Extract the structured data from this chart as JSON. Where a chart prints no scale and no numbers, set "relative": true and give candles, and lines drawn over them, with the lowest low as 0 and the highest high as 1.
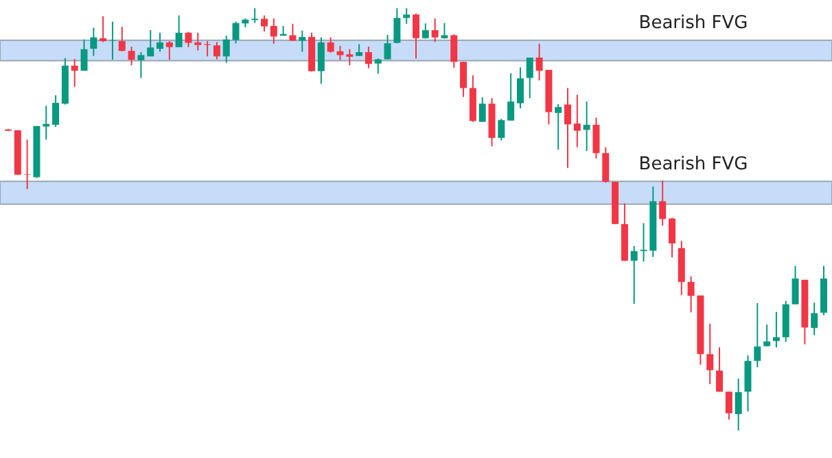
{
  "chart_data": {
    "type": "candlestick",
    "relative": true,
    "categories": [
      null,
      null,
      null,
      null,
      null,
      null,
      null,
      null,
      null,
      null,
      null,
      null,
      null,
      null,
      null,
      null,
      null,
      null,
      null,
      null,
      null,
      null,
      null,
      null,
      null,
      null,
      null,
      null,
      null,
      null,
      null,
      null,
      null,
      null,
      null,
      null,
      null,
      null,
      null,
      null,
      null,
      null,
      null,
      null,
      null,
      null,
      null,
      null,
      null,
      null,
      null,
      null,
      null,
      null,
      null,
      null,
      null,
      null,
      null,
      null,
      null,
      null,
      null,
      null,
      null,
      null,
      null,
      null,
      null,
      null,
      null,
      null,
      null,
      null,
      null,
      null,
      null,
      null,
      null,
      null,
      null,
      null,
      null,
      null,
      null,
      null,
      null
    ],
    "ohlc": [
      [
        0.713,
        0.714,
        0.709,
        0.71
      ],
      [
        0.711,
        0.711,
        0.605,
        0.606
      ],
      [
        0.607,
        0.689,
        0.572,
        0.606
      ],
      [
        0.6,
        0.721,
        0.598,
        0.721
      ],
      [
        0.72,
        0.769,
        0.689,
        0.726
      ],
      [
        0.724,
        0.794,
        0.719,
        0.776
      ],
      [
        0.774,
        0.882,
        0.772,
        0.864
      ],
      [
        0.864,
        0.88,
        0.814,
        0.852
      ],
      [
        0.852,
        0.926,
        0.852,
        0.903
      ],
      [
        0.904,
        0.954,
        0.887,
        0.931
      ],
      [
        0.929,
        0.981,
        0.92,
        0.922
      ],
      [
        0.923,
        0.968,
        0.878,
        0.924
      ],
      [
        0.922,
        0.956,
        0.898,
        0.899
      ],
      [
        0.899,
        0.909,
        0.865,
        0.878
      ],
      [
        0.877,
        0.896,
        0.835,
        0.889
      ],
      [
        0.886,
        0.948,
        0.886,
        0.907
      ],
      [
        0.904,
        0.942,
        0.897,
        0.919
      ],
      [
        0.919,
        0.922,
        0.878,
        0.908
      ],
      [
        0.908,
        0.983,
        0.908,
        0.942
      ],
      [
        0.942,
        0.944,
        0.908,
        0.918
      ],
      [
        0.919,
        0.942,
        0.9,
        0.913
      ],
      [
        0.915,
        0.922,
        0.886,
        0.913
      ],
      [
        0.912,
        0.92,
        0.879,
        0.886
      ],
      [
        0.886,
        0.935,
        0.871,
        0.926
      ],
      [
        0.925,
        0.968,
        0.917,
        0.965
      ],
      [
        0.964,
        0.976,
        0.955,
        0.973
      ],
      [
        0.972,
        1,
        0.965,
        0.975
      ],
      [
        0.975,
        0.983,
        0.945,
        0.957
      ],
      [
        0.958,
        0.976,
        0.916,
        0.933
      ],
      [
        0.935,
        0.958,
        0.935,
        0.939
      ],
      [
        0.936,
        0.963,
        0.923,
        0.923
      ],
      [
        0.923,
        0.947,
        0.897,
        0.932
      ],
      [
        0.932,
        0.942,
        0.85,
        0.851
      ],
      [
        0.851,
        0.931,
        0.821,
        0.919
      ],
      [
        0.919,
        0.931,
        0.895,
        0.897
      ],
      [
        0.898,
        0.911,
        0.877,
        0.889
      ],
      [
        0.891,
        0.903,
        0.865,
        0.885
      ],
      [
        0.887,
        0.915,
        0.887,
        0.896
      ],
      [
        0.896,
        0.909,
        0.858,
        0.868
      ],
      [
        0.869,
        0.881,
        0.845,
        0.879
      ],
      [
        0.879,
        0.937,
        0.879,
        0.917
      ],
      [
        0.918,
        1,
        0.917,
        0.977
      ],
      [
        0.977,
        1,
        0.963,
        0.985
      ],
      [
        0.985,
        0.987,
        0.881,
        0.929
      ],
      [
        0.929,
        0.964,
        0.928,
        0.948
      ],
      [
        0.948,
        0.976,
        0.92,
        0.931
      ],
      [
        0.929,
        0.965,
        0.928,
        0.936
      ],
      [
        0.936,
        0.938,
        0.859,
        0.873
      ],
      [
        0.873,
        0.873,
        0.79,
        0.811
      ],
      [
        0.811,
        0.841,
        0.731,
        0.733
      ],
      [
        0.731,
        0.789,
        0.731,
        0.774
      ],
      [
        0.774,
        0.787,
        0.673,
        0.693
      ],
      [
        0.693,
        0.738,
        0.687,
        0.735
      ],
      [
        0.734,
        0.846,
        0.734,
        0.779
      ],
      [
        0.775,
        0.86,
        0.763,
        0.834
      ],
      [
        0.835,
        0.883,
        0.787,
        0.883
      ],
      [
        0.883,
        0.916,
        0.829,
        0.852
      ],
      [
        0.854,
        0.854,
        0.725,
        0.754
      ],
      [
        0.752,
        0.773,
        0.665,
        0.766
      ],
      [
        0.772,
        0.811,
        0.622,
        0.725
      ],
      [
        0.727,
        0.795,
        0.671,
        0.71
      ],
      [
        0.712,
        0.779,
        0.662,
        0.724
      ],
      [
        0.724,
        0.741,
        0.644,
        0.657
      ],
      [
        0.657,
        0.671,
        0.587,
        0.589
      ],
      [
        0.589,
        0.589,
        0.489,
        0.489
      ],
      [
        0.489,
        0.538,
        0.402,
        0.402
      ],
      [
        0.402,
        0.437,
        0.3,
        0.425
      ],
      [
        0.425,
        0.491,
        0.4,
        0.428
      ],
      [
        0.426,
        0.578,
        0.411,
        0.543
      ],
      [
        0.543,
        0.592,
        0.485,
        0.501
      ],
      [
        0.502,
        0.504,
        0.41,
        0.443
      ],
      [
        0.432,
        0.449,
        0.321,
        0.352
      ],
      [
        0.352,
        0.365,
        0.28,
        0.319
      ],
      [
        0.32,
        0.32,
        0.156,
        0.181
      ],
      [
        0.181,
        0.253,
        0.11,
        0.143
      ],
      [
        0.142,
        0.197,
        0.092,
        0.092
      ],
      [
        0.092,
        0.092,
        0.026,
        0.041
      ],
      [
        0.039,
        0.123,
        0,
        0.091
      ],
      [
        0.092,
        0.178,
        0.045,
        0.165
      ],
      [
        0.165,
        0.302,
        0.15,
        0.199
      ],
      [
        0.2,
        0.251,
        0.199,
        0.211
      ],
      [
        0.212,
        0.281,
        0.197,
        0.221
      ],
      [
        0.221,
        0.307,
        0.21,
        0.299
      ],
      [
        0.299,
        0.39,
        0.299,
        0.36
      ],
      [
        0.357,
        0.357,
        0.204,
        0.244
      ],
      [
        0.243,
        0.303,
        0.226,
        0.278
      ],
      [
        0.279,
        0.39,
        0.273,
        0.36
      ]
    ],
    "colors": [
      "#f23645",
      "#f23645",
      "#f23645",
      "#089981",
      "#089981",
      "#089981",
      "#089981",
      "#f23645",
      "#089981",
      "#089981",
      "#f23645",
      "#089981",
      "#f23645",
      "#f23645",
      "#089981",
      "#089981",
      "#089981",
      "#f23645",
      "#089981",
      "#f23645",
      "#f23645",
      "#f23645",
      "#f23645",
      "#089981",
      "#089981",
      "#089981",
      "#089981",
      "#f23645",
      "#f23645",
      "#089981",
      "#f23645",
      "#089981",
      "#f23645",
      "#089981",
      "#f23645",
      "#f23645",
      "#f23645",
      "#089981",
      "#f23645",
      "#089981",
      "#089981",
      "#089981",
      "#089981",
      "#f23645",
      "#089981",
      "#f23645",
      "#089981",
      "#f23645",
      "#f23645",
      "#f23645",
      "#089981",
      "#f23645",
      "#089981",
      "#089981",
      "#089981",
      "#089981",
      "#f23645",
      "#f23645",
      "#089981",
      "#f23645",
      "#f23645",
      "#089981",
      "#f23645",
      "#f23645",
      "#f23645",
      "#f23645",
      "#089981",
      "#089981",
      "#089981",
      "#f23645",
      "#f23645",
      "#f23645",
      "#f23645",
      "#f23645",
      "#f23645",
      "#f23645",
      "#f23645",
      "#089981",
      "#089981",
      "#089981",
      "#089981",
      "#089981",
      "#089981",
      "#089981",
      "#f23645",
      "#089981",
      "#089981"
    ],
    "bands": [
      {
        "axis": "y",
        "from": 0.876,
        "to": 0.924,
        "label": "Bearish FVG",
        "color": "#c6dcf8"
      },
      {
        "axis": "y",
        "from": 0.536,
        "to": 0.59,
        "label": "Bearish FVG",
        "color": "#c6dcf8"
      }
    ]
  }
}
